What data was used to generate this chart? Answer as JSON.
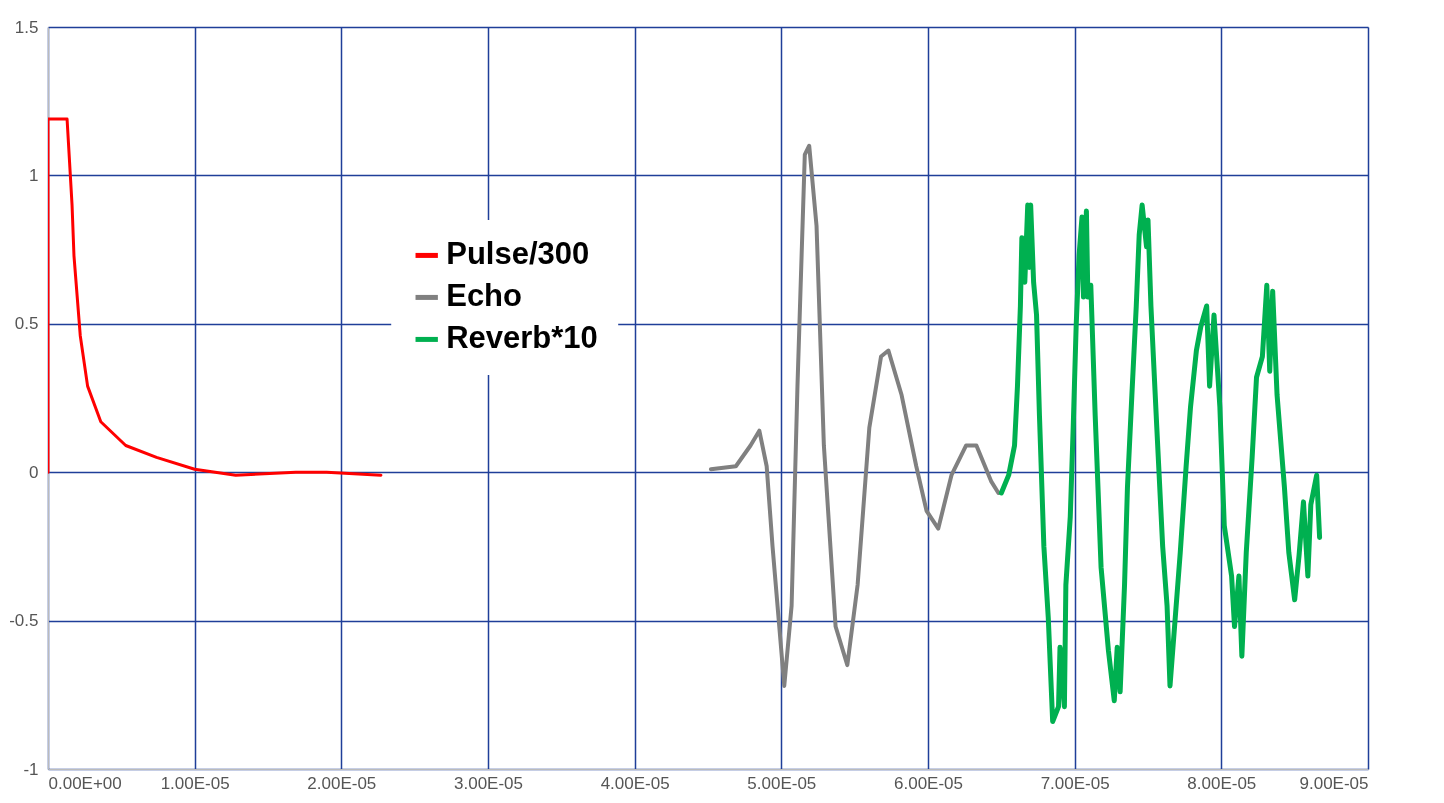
{
  "chart_data": {
    "type": "line",
    "xlim": [
      0,
      9e-05
    ],
    "xticks": [
      {
        "value": 0,
        "label": "0.00E+00"
      },
      {
        "value": 1e-05,
        "label": "1.00E-05"
      },
      {
        "value": 2e-05,
        "label": "2.00E-05"
      },
      {
        "value": 3e-05,
        "label": "3.00E-05"
      },
      {
        "value": 4e-05,
        "label": "4.00E-05"
      },
      {
        "value": 5e-05,
        "label": "5.00E-05"
      },
      {
        "value": 6e-05,
        "label": "6.00E-05"
      },
      {
        "value": 7e-05,
        "label": "7.00E-05"
      },
      {
        "value": 8e-05,
        "label": "8.00E-05"
      },
      {
        "value": 9e-05,
        "label": "9.00E-05"
      }
    ],
    "ylim": [
      -1,
      1.5
    ],
    "yticks": [
      -1,
      -0.5,
      0,
      0.5,
      1,
      1.5
    ],
    "grid": true,
    "legend": "top left",
    "series": [
      {
        "name": "Pulse/300",
        "color": "#ff0000",
        "x": [
          0,
          0,
          1.3e-06,
          1.64e-06,
          1.77e-06,
          2.2e-06,
          2.7e-06,
          3.6e-06,
          5.3e-06,
          7.4e-06,
          1e-05,
          1.28e-05,
          1.69e-05,
          1.9e-05,
          2.27e-05
        ],
        "values": [
          0,
          1.19,
          1.19,
          0.9,
          0.73,
          0.46,
          0.29,
          0.17,
          0.09,
          0.05,
          0.01,
          -0.01,
          0.0,
          0.0,
          -0.01
        ]
      },
      {
        "name": "Echo",
        "color": "#808080",
        "x": [
          4.52e-05,
          4.69e-05,
          4.79e-05,
          4.85e-05,
          4.9e-05,
          4.94e-05,
          5.02e-05,
          5.07e-05,
          5.11e-05,
          5.16e-05,
          5.19e-05,
          5.24e-05,
          5.29e-05,
          5.37e-05,
          5.45e-05,
          5.52e-05,
          5.6e-05,
          5.68e-05,
          5.73e-05,
          5.82e-05,
          5.92e-05,
          5.99e-05,
          6.07e-05,
          6.16e-05,
          6.26e-05,
          6.33e-05,
          6.43e-05,
          6.48e-05
        ],
        "values": [
          0.01,
          0.02,
          0.09,
          0.14,
          0.02,
          -0.25,
          -0.72,
          -0.45,
          0.29,
          1.07,
          1.1,
          0.83,
          0.09,
          -0.52,
          -0.65,
          -0.38,
          0.15,
          0.39,
          0.41,
          0.26,
          0.02,
          -0.13,
          -0.19,
          -0.01,
          0.09,
          0.09,
          -0.03,
          -0.07
        ]
      },
      {
        "name": "Reverb*10",
        "color": "#00b050",
        "x": [
          6.5e-05,
          6.55e-05,
          6.59e-05,
          6.61e-05,
          6.63e-05,
          6.64e-05,
          6.66e-05,
          6.68e-05,
          6.69e-05,
          6.7e-05,
          6.72e-05,
          6.74e-05,
          6.76e-05,
          6.79e-05,
          6.82e-05,
          6.85e-05,
          6.89e-05,
          6.9e-05,
          6.93e-05,
          6.94e-05,
          6.97e-05,
          6.99e-05,
          7.01e-05,
          7.03e-05,
          7.05e-05,
          7.06e-05,
          7.08e-05,
          7.09e-05,
          7.11e-05,
          7.14e-05,
          7.18e-05,
          7.23e-05,
          7.27e-05,
          7.29e-05,
          7.31e-05,
          7.34e-05,
          7.36e-05,
          7.39e-05,
          7.42e-05,
          7.44e-05,
          7.46e-05,
          7.49e-05,
          7.5e-05,
          7.52e-05,
          7.56e-05,
          7.6e-05,
          7.63e-05,
          7.65e-05,
          7.72e-05,
          7.76e-05,
          7.79e-05,
          7.83e-05,
          7.86e-05,
          7.9e-05,
          7.92e-05,
          7.95e-05,
          7.99e-05,
          8.02e-05,
          8.07e-05,
          8.09e-05,
          8.12e-05,
          8.14e-05,
          8.17e-05,
          8.21e-05,
          8.24e-05,
          8.28e-05,
          8.31e-05,
          8.33e-05,
          8.35e-05,
          8.38e-05,
          8.43e-05,
          8.46e-05,
          8.5e-05,
          8.53e-05,
          8.56e-05,
          8.59e-05,
          8.61e-05,
          8.65e-05,
          8.67e-05
        ],
        "values": [
          -0.07,
          -0.01,
          0.09,
          0.29,
          0.56,
          0.79,
          0.64,
          0.9,
          0.69,
          0.9,
          0.64,
          0.53,
          0.19,
          -0.25,
          -0.49,
          -0.84,
          -0.79,
          -0.59,
          -0.79,
          -0.38,
          -0.15,
          0.15,
          0.49,
          0.73,
          0.86,
          0.59,
          0.88,
          0.59,
          0.63,
          0.19,
          -0.32,
          -0.6,
          -0.77,
          -0.59,
          -0.74,
          -0.38,
          -0.05,
          0.26,
          0.56,
          0.8,
          0.9,
          0.76,
          0.85,
          0.56,
          0.15,
          -0.25,
          -0.45,
          -0.72,
          -0.27,
          0.02,
          0.22,
          0.41,
          0.49,
          0.56,
          0.29,
          0.53,
          0.22,
          -0.18,
          -0.35,
          -0.52,
          -0.35,
          -0.62,
          -0.27,
          0.05,
          0.32,
          0.39,
          0.63,
          0.34,
          0.61,
          0.26,
          -0.05,
          -0.27,
          -0.43,
          -0.28,
          -0.1,
          -0.35,
          -0.11,
          -0.01,
          -0.22
        ]
      }
    ]
  }
}
